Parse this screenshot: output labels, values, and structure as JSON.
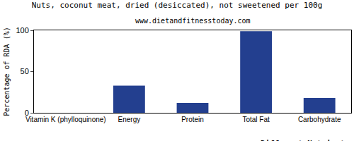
{
  "chart_data": {
    "type": "bar",
    "title": "Nuts, coconut meat, dried (desiccated), not sweetened per 100g",
    "subtitle": "www.dietandfitnesstoday.com",
    "x_label": "Different Nutrients",
    "y_label": "Percentage of RDA (%)",
    "categories": [
      "Vitamin K (phylloquinone)",
      "Energy",
      "Protein",
      "Total Fat",
      "Carbohydrate"
    ],
    "values": [
      0,
      33,
      12,
      99,
      18
    ],
    "color": "#233f8f",
    "ylim": [
      0,
      100
    ],
    "yticks": [
      0,
      50,
      100
    ],
    "grid": false
  }
}
